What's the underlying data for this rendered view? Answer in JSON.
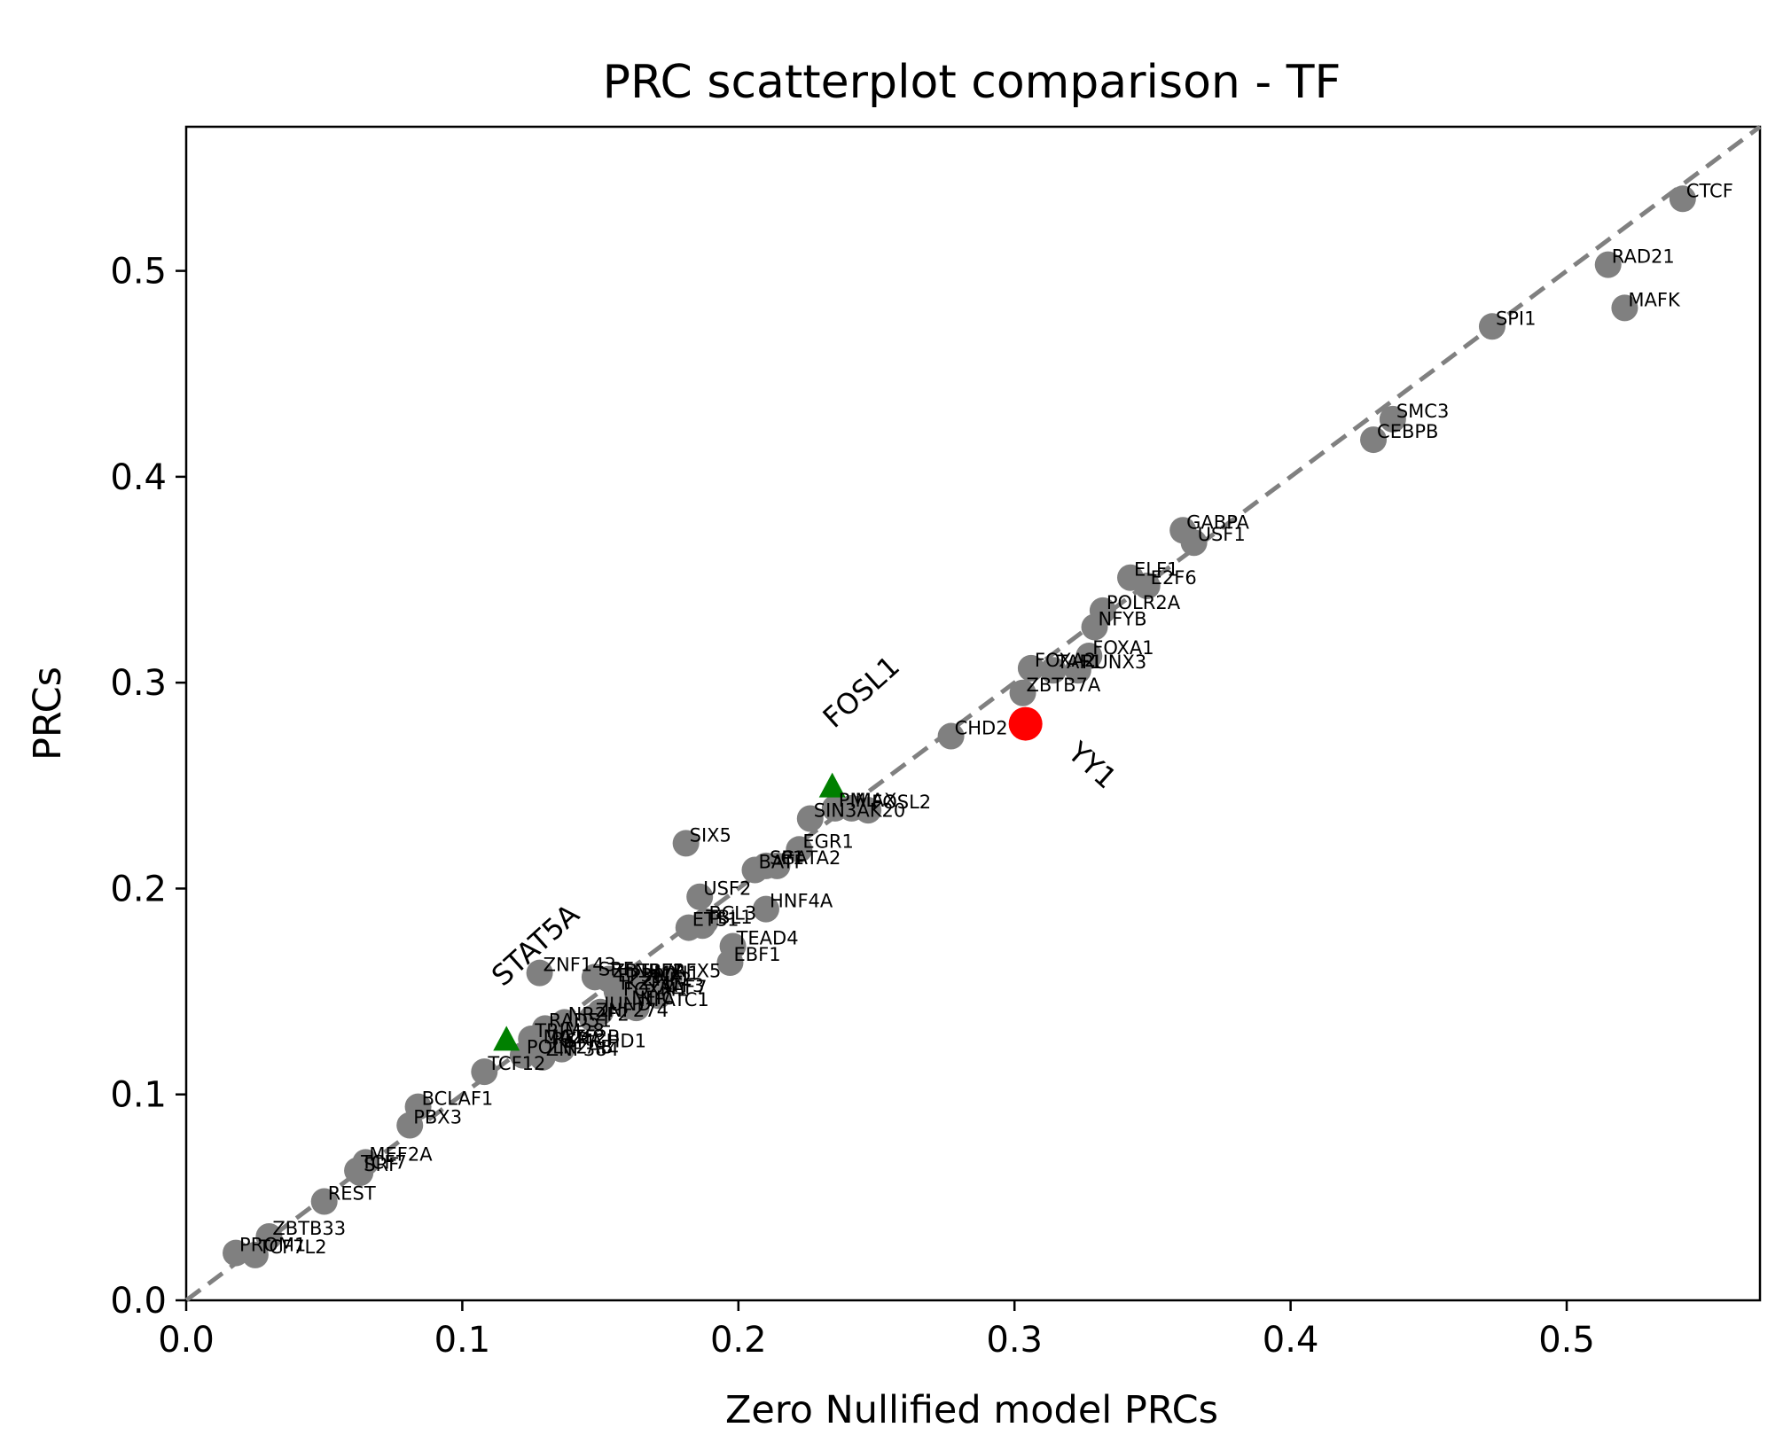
{
  "chart_data": {
    "type": "scatter",
    "title": "PRC scatterplot comparison - TF",
    "xlabel": "Zero Nullified model PRCs",
    "ylabel": "PRCs",
    "xlim": [
      0.0,
      0.57
    ],
    "ylim": [
      0.0,
      0.57
    ],
    "xticks": [
      "0.0",
      "0.1",
      "0.2",
      "0.3",
      "0.4",
      "0.5"
    ],
    "yticks": [
      "0.0",
      "0.1",
      "0.2",
      "0.3",
      "0.4",
      "0.5"
    ],
    "grid": false,
    "reference_line": {
      "style": "dashed",
      "color": "#808080",
      "slope": 1,
      "intercept": 0
    },
    "colors": {
      "points": "#808080",
      "highlight": "#ff0000",
      "triangle": "#008000"
    },
    "points": [
      {
        "label": "CTCF",
        "x": 0.542,
        "y": 0.535
      },
      {
        "label": "RAD21",
        "x": 0.515,
        "y": 0.503
      },
      {
        "label": "MAFK",
        "x": 0.521,
        "y": 0.482
      },
      {
        "label": "SPI1",
        "x": 0.473,
        "y": 0.473
      },
      {
        "label": "SMC3",
        "x": 0.437,
        "y": 0.428
      },
      {
        "label": "CEBPB",
        "x": 0.43,
        "y": 0.418
      },
      {
        "label": "GABPA",
        "x": 0.361,
        "y": 0.374
      },
      {
        "label": "USF1",
        "x": 0.365,
        "y": 0.368
      },
      {
        "label": "ELF1",
        "x": 0.342,
        "y": 0.351
      },
      {
        "label": "E2F6",
        "x": 0.348,
        "y": 0.347
      },
      {
        "label": "POLR2A",
        "x": 0.332,
        "y": 0.335
      },
      {
        "label": "NFYB",
        "x": 0.329,
        "y": 0.327
      },
      {
        "label": "FOXA1",
        "x": 0.327,
        "y": 0.313
      },
      {
        "label": "FOXA2",
        "x": 0.306,
        "y": 0.307
      },
      {
        "label": "TAF1",
        "x": 0.314,
        "y": 0.306
      },
      {
        "label": "RUNX3",
        "x": 0.323,
        "y": 0.306
      },
      {
        "label": "ZBTB7A",
        "x": 0.303,
        "y": 0.295
      },
      {
        "label": "CHD2",
        "x": 0.277,
        "y": 0.274
      },
      {
        "label": "PML",
        "x": 0.235,
        "y": 0.239
      },
      {
        "label": "MAX",
        "x": 0.241,
        "y": 0.239
      },
      {
        "label": "FOSL2",
        "x": 0.247,
        "y": 0.238
      },
      {
        "label": "SIN3AK20",
        "x": 0.226,
        "y": 0.234
      },
      {
        "label": "SIX5",
        "x": 0.181,
        "y": 0.222
      },
      {
        "label": "EGR1",
        "x": 0.222,
        "y": 0.219
      },
      {
        "label": "GATA2",
        "x": 0.214,
        "y": 0.211
      },
      {
        "label": "SP1",
        "x": 0.21,
        "y": 0.211
      },
      {
        "label": "BATF",
        "x": 0.206,
        "y": 0.209
      },
      {
        "label": "USF2",
        "x": 0.186,
        "y": 0.196
      },
      {
        "label": "HNF4A",
        "x": 0.21,
        "y": 0.19
      },
      {
        "label": "TBL1",
        "x": 0.187,
        "y": 0.182
      },
      {
        "label": "ETS1",
        "x": 0.182,
        "y": 0.181
      },
      {
        "label": "BCL3",
        "x": 0.188,
        "y": 0.184
      },
      {
        "label": "TEAD4",
        "x": 0.198,
        "y": 0.172
      },
      {
        "label": "EBF1",
        "x": 0.197,
        "y": 0.164
      },
      {
        "label": "ZNF143",
        "x": 0.128,
        "y": 0.159
      },
      {
        "label": "SRF",
        "x": 0.148,
        "y": 0.157
      },
      {
        "label": "ZBTB7A",
        "x": 0.153,
        "y": 0.156
      },
      {
        "label": "EP300",
        "x": 0.155,
        "y": 0.154
      },
      {
        "label": "NRF1",
        "x": 0.161,
        "y": 0.156
      },
      {
        "label": "ZNF2",
        "x": 0.164,
        "y": 0.152
      },
      {
        "label": "MXI1",
        "x": 0.168,
        "y": 0.155
      },
      {
        "label": "RFX5",
        "x": 0.175,
        "y": 0.156
      },
      {
        "label": "IKZF1",
        "x": 0.156,
        "y": 0.15
      },
      {
        "label": "FOXM1",
        "x": 0.157,
        "y": 0.147
      },
      {
        "label": "ATF3",
        "x": 0.17,
        "y": 0.149
      },
      {
        "label": "NFIC",
        "x": 0.16,
        "y": 0.143
      },
      {
        "label": "JUND",
        "x": 0.15,
        "y": 0.14
      },
      {
        "label": "NFATC1",
        "x": 0.163,
        "y": 0.142
      },
      {
        "label": "TAF7",
        "x": 0.171,
        "y": 0.148
      },
      {
        "label": "ZNF274",
        "x": 0.147,
        "y": 0.137
      },
      {
        "label": "NR2F2",
        "x": 0.137,
        "y": 0.135
      },
      {
        "label": "RAD51",
        "x": 0.13,
        "y": 0.132
      },
      {
        "label": "TRIM28",
        "x": 0.125,
        "y": 0.127
      },
      {
        "label": "MAZ",
        "x": 0.128,
        "y": 0.124
      },
      {
        "label": "RXRA",
        "x": 0.131,
        "y": 0.123
      },
      {
        "label": "GTF2B",
        "x": 0.134,
        "y": 0.124
      },
      {
        "label": "SMCHD1",
        "x": 0.136,
        "y": 0.122
      },
      {
        "label": "POLR2AB",
        "x": 0.122,
        "y": 0.119
      },
      {
        "label": "ZNF384",
        "x": 0.129,
        "y": 0.118
      },
      {
        "label": "TCF12",
        "x": 0.108,
        "y": 0.111
      },
      {
        "label": "BCLAF1",
        "x": 0.084,
        "y": 0.094
      },
      {
        "label": "PBX3",
        "x": 0.081,
        "y": 0.085
      },
      {
        "label": "MEF2A",
        "x": 0.065,
        "y": 0.067
      },
      {
        "label": "TCF7",
        "x": 0.062,
        "y": 0.063
      },
      {
        "label": "SRF",
        "x": 0.063,
        "y": 0.062
      },
      {
        "label": "REST",
        "x": 0.05,
        "y": 0.048
      },
      {
        "label": "ZBTB33",
        "x": 0.03,
        "y": 0.031
      },
      {
        "label": "PROM1",
        "x": 0.018,
        "y": 0.023
      },
      {
        "label": "TCF7L2",
        "x": 0.025,
        "y": 0.022
      }
    ],
    "highlight": {
      "label": "YY1",
      "x": 0.304,
      "y": 0.28
    },
    "triangles": [
      {
        "label": "FOSL1",
        "x": 0.234,
        "y": 0.249
      },
      {
        "label": "STAT5A",
        "x": 0.116,
        "y": 0.126
      }
    ]
  }
}
